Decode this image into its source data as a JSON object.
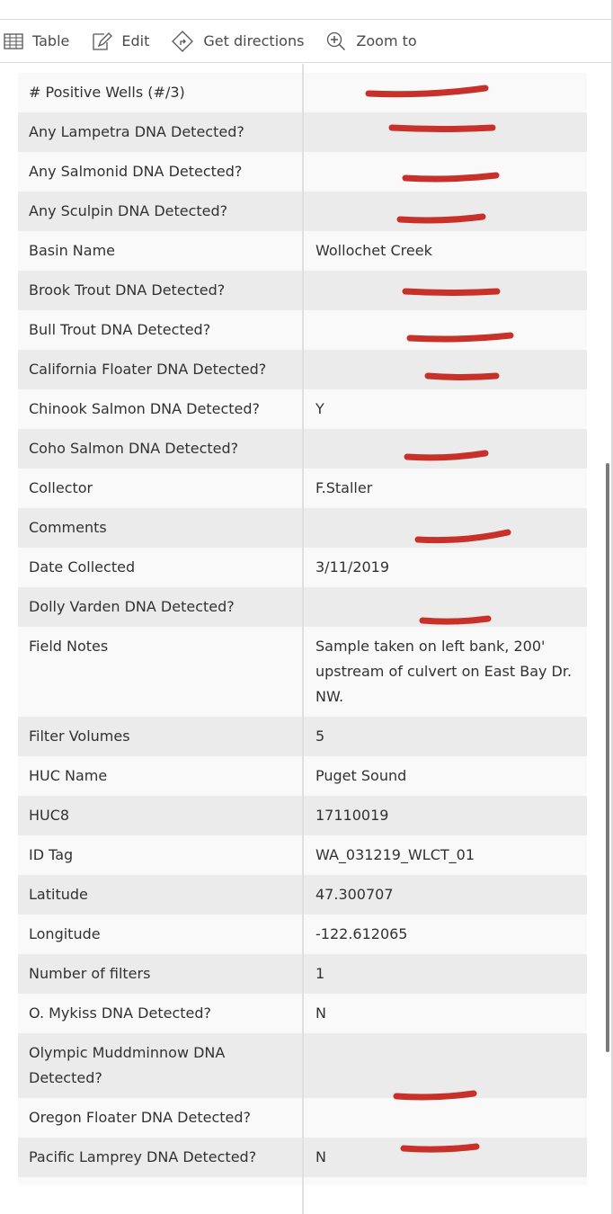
{
  "toolbar": {
    "table": "Table",
    "edit": "Edit",
    "directions": "Get directions",
    "zoom": "Zoom to"
  },
  "redaction_color": "#c8302a",
  "rows": [
    {
      "label": "# Positive Wells (#/3)",
      "value": null
    },
    {
      "label": "Any Lampetra DNA Detected?",
      "value": null
    },
    {
      "label": "Any Salmonid DNA Detected?",
      "value": null
    },
    {
      "label": "Any Sculpin DNA Detected?",
      "value": null
    },
    {
      "label": "Basin Name",
      "value": "Wollochet Creek"
    },
    {
      "label": "Brook Trout DNA Detected?",
      "value": null
    },
    {
      "label": "Bull Trout DNA Detected?",
      "value": null
    },
    {
      "label": "California Floater DNA Detected?",
      "value": null
    },
    {
      "label": "Chinook Salmon DNA Detected?",
      "value": "Y"
    },
    {
      "label": "Coho Salmon DNA Detected?",
      "value": null
    },
    {
      "label": "Collector",
      "value": "F.Staller"
    },
    {
      "label": "Comments",
      "value": null
    },
    {
      "label": "Date Collected",
      "value": "3/11/2019"
    },
    {
      "label": "Dolly Varden DNA Detected?",
      "value": null
    },
    {
      "label": "Field Notes",
      "value": "Sample taken on left bank, 200' upstream of culvert on East Bay Dr. NW."
    },
    {
      "label": "Filter Volumes",
      "value": "5"
    },
    {
      "label": "HUC Name",
      "value": "Puget Sound"
    },
    {
      "label": "HUC8",
      "value": "17110019"
    },
    {
      "label": "ID Tag",
      "value": "WA_031219_WLCT_01"
    },
    {
      "label": "Latitude",
      "value": "47.300707"
    },
    {
      "label": "Longitude",
      "value": "-122.612065"
    },
    {
      "label": "Number of filters",
      "value": "1"
    },
    {
      "label": "O. Mykiss DNA Detected?",
      "value": "N"
    },
    {
      "label": "Olympic Muddminnow DNA Detected?",
      "value": null
    },
    {
      "label": "Oregon Floater DNA Detected?",
      "value": null
    },
    {
      "label": "Pacific Lamprey DNA Detected?",
      "value": "N"
    },
    {
      "label": "",
      "value": ""
    }
  ]
}
